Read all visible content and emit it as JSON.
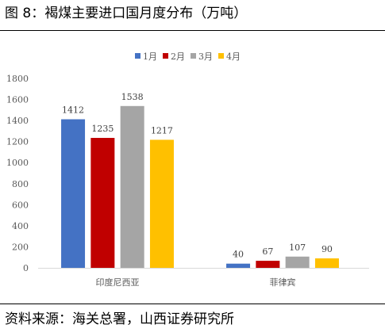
{
  "figure": {
    "title": "图 8：褐煤主要进口国月度分布（万吨）",
    "source": "资料来源：海关总署，山西证券研究所"
  },
  "chart_data": {
    "type": "bar",
    "categories": [
      "印度尼西亚",
      "菲律宾"
    ],
    "series": [
      {
        "name": "1月",
        "color": "#4472C4",
        "values": [
          1412,
          40
        ]
      },
      {
        "name": "2月",
        "color": "#C00000",
        "values": [
          1235,
          67
        ]
      },
      {
        "name": "3月",
        "color": "#A5A5A5",
        "values": [
          1538,
          107
        ]
      },
      {
        "name": "4月",
        "color": "#FFC000",
        "values": [
          1217,
          90
        ]
      }
    ],
    "ylim": [
      0,
      1800
    ],
    "yticks": [
      0,
      200,
      400,
      600,
      800,
      1000,
      1200,
      1400,
      1600,
      1800
    ],
    "grid": false,
    "legend": "top-center",
    "data_labels": true
  }
}
